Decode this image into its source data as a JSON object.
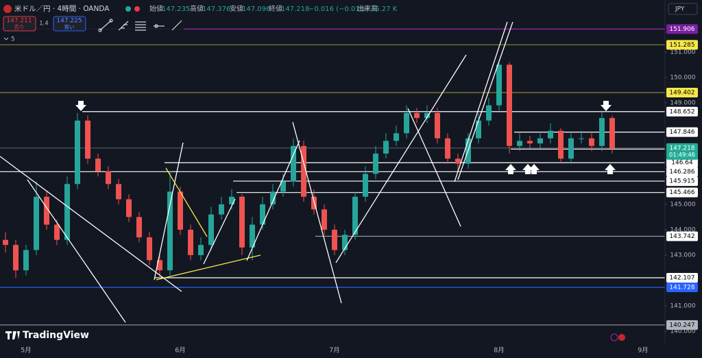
{
  "header": {
    "symbol": "米ドル／円 · 4時間 · OANDA",
    "ohlc": [
      {
        "label": "始値",
        "value": 147.235
      },
      {
        "label": "高値",
        "value": 147.376
      },
      {
        "label": "安値",
        "value": 147.096
      },
      {
        "label": "終値",
        "value": 147.218
      }
    ],
    "change": "−0.016 (−0.01%)",
    "volume_label": "出来高",
    "volume": "15.27 K"
  },
  "trade": {
    "sell_price": 147.211,
    "sell_label": "売り",
    "spread": 1.4,
    "buy_price": 147.225,
    "buy_label": "買い"
  },
  "indicators_count": 5,
  "currency": "JPY",
  "logo": "TradingView",
  "chart_data": {
    "type": "candlestick",
    "up_color": "#26a69a",
    "down_color": "#ef5350",
    "grid": false,
    "categories": [
      null,
      null,
      "5月",
      null,
      null,
      null,
      null,
      null,
      null,
      null,
      null,
      null,
      null,
      null,
      null,
      null,
      null,
      "6月",
      null,
      null,
      null,
      null,
      null,
      null,
      null,
      null,
      null,
      null,
      null,
      null,
      null,
      null,
      "7月",
      null,
      null,
      null,
      null,
      null,
      null,
      null,
      null,
      null,
      null,
      null,
      null,
      null,
      null,
      null,
      "8月",
      null,
      null,
      null,
      null,
      null,
      null,
      null,
      null,
      null,
      null,
      null,
      null,
      null,
      "9月",
      null,
      null
    ],
    "open": [
      143.6,
      143.4,
      142.4,
      143.2,
      145.3,
      144.2,
      143.6,
      145.8,
      148.3,
      146.8,
      146.3,
      145.8,
      145.2,
      144.5,
      143.7,
      142.8,
      142.4,
      145.5,
      144.0,
      143.0,
      143.4,
      144.6,
      145.0,
      145.3,
      143.3,
      144.2,
      145.0,
      145.5,
      145.9,
      147.3,
      145.3,
      144.8,
      144.0,
      143.2,
      143.8,
      145.3,
      146.2,
      147.0,
      147.5,
      147.8,
      148.6,
      148.4,
      148.6,
      147.6,
      146.8,
      146.6,
      147.6,
      148.3,
      148.9,
      150.5,
      147.3,
      147.5,
      147.4,
      147.6,
      147.9,
      146.8,
      147.6,
      147.6,
      147.3,
      148.4,
      null,
      null,
      null,
      null,
      null
    ],
    "high": [
      143.9,
      143.6,
      143.4,
      145.9,
      145.5,
      144.4,
      146.1,
      148.6,
      148.5,
      147.0,
      146.5,
      146.0,
      145.4,
      144.7,
      143.9,
      143.0,
      146.3,
      145.7,
      144.2,
      143.7,
      144.9,
      145.3,
      145.6,
      145.4,
      144.5,
      145.3,
      145.8,
      146.2,
      147.6,
      147.5,
      145.6,
      145.0,
      144.2,
      144.0,
      145.5,
      146.5,
      147.3,
      147.8,
      148.1,
      148.9,
      148.8,
      148.9,
      148.8,
      147.8,
      147.0,
      147.8,
      148.6,
      149.2,
      150.7,
      150.6,
      147.8,
      147.7,
      147.8,
      148.2,
      148.0,
      147.8,
      147.9,
      147.8,
      148.7,
      148.5,
      null,
      null,
      null,
      null,
      null
    ],
    "low": [
      143.1,
      142.1,
      142.2,
      143.0,
      144.0,
      143.4,
      143.4,
      145.6,
      146.6,
      146.1,
      145.6,
      145.0,
      144.3,
      143.5,
      142.6,
      142.1,
      142.2,
      143.8,
      142.8,
      142.8,
      143.2,
      144.4,
      144.8,
      143.0,
      142.8,
      144.0,
      144.8,
      145.3,
      145.7,
      145.1,
      144.6,
      143.8,
      143.0,
      143.0,
      143.6,
      145.1,
      146.0,
      146.8,
      147.3,
      147.6,
      148.2,
      148.2,
      147.4,
      146.6,
      146.3,
      146.4,
      147.4,
      148.1,
      148.7,
      147.0,
      147.1,
      147.2,
      147.2,
      147.4,
      146.6,
      146.6,
      147.4,
      147.1,
      147.1,
      147.0,
      null,
      null,
      null,
      null,
      null
    ],
    "close": [
      143.4,
      142.4,
      143.2,
      145.3,
      144.2,
      143.6,
      145.8,
      148.3,
      146.8,
      146.3,
      145.8,
      145.2,
      144.5,
      143.7,
      142.8,
      142.4,
      145.5,
      144.0,
      143.0,
      143.4,
      144.6,
      145.0,
      145.3,
      143.3,
      144.2,
      145.0,
      145.5,
      145.9,
      147.3,
      145.3,
      144.8,
      144.0,
      143.2,
      143.8,
      145.3,
      146.2,
      147.0,
      147.5,
      147.8,
      148.6,
      148.4,
      148.6,
      147.6,
      146.8,
      146.6,
      147.6,
      148.3,
      148.9,
      150.5,
      147.3,
      147.5,
      147.4,
      147.6,
      147.9,
      146.8,
      147.6,
      147.6,
      147.3,
      148.4,
      147.2,
      null,
      null,
      null,
      null,
      null
    ],
    "ylim": [
      139.54,
      153.05
    ],
    "yticks": [
      {
        "value": 140,
        "label": "140.000"
      },
      {
        "value": 141,
        "label": "141.000"
      },
      {
        "value": 143,
        "label": "143.000"
      },
      {
        "value": 144,
        "label": "144.000"
      },
      {
        "value": 145,
        "label": "145.000"
      },
      {
        "value": 149,
        "label": "149.000"
      },
      {
        "value": 150,
        "label": "150.000"
      },
      {
        "value": 151,
        "label": "151.000"
      }
    ],
    "levels": [
      {
        "value": 151.906,
        "color": "#9c27b0",
        "tag_color": "#7b1fa2",
        "text_color": "#ffffff"
      },
      {
        "value": 151.285,
        "color": "#8a8434",
        "tag_color": "#f5e84a",
        "text_color": "#000000"
      },
      {
        "value": 149.402,
        "color": "#8a8434",
        "tag_color": "#f5e84a",
        "text_color": "#000000"
      },
      {
        "value": 148.652,
        "color": "#ffffff",
        "tag_color": "#ffffff",
        "text_color": "#000000"
      },
      {
        "value": 147.846,
        "color": "#ffffff",
        "tag_color": "#ffffff",
        "text_color": "#000000"
      },
      {
        "value": 147.175,
        "color": "#ffffff",
        "tag_color": "#ffffff",
        "text_color": "#000000"
      },
      {
        "value": 146.64,
        "color": "#ffffff",
        "tag_color": "#ffffff",
        "text_color": "#000000"
      },
      {
        "value": 146.286,
        "color": "#ffffff",
        "tag_color": "#ffffff",
        "text_color": "#000000"
      },
      {
        "value": 145.915,
        "color": "#ffffff",
        "tag_color": "#ffffff",
        "text_color": "#000000"
      },
      {
        "value": 145.466,
        "color": "#ffffff",
        "tag_color": "#ffffff",
        "text_color": "#000000"
      },
      {
        "value": 143.742,
        "color": "#9598a1",
        "tag_color": "#ffffff",
        "text_color": "#000000"
      },
      {
        "value": 142.107,
        "color": "#ffffff",
        "tag_color": "#ffffff",
        "text_color": "#000000"
      },
      {
        "value": 141.728,
        "color": "#2962ff",
        "tag_color": "#2962ff",
        "text_color": "#ffffff"
      },
      {
        "value": 140.247,
        "color": "#9598a1",
        "tag_color": "#b2b5be",
        "text_color": "#000000"
      }
    ],
    "last_price": 147.218,
    "countdown": "01:49:46",
    "last_color": "#22ab94"
  }
}
